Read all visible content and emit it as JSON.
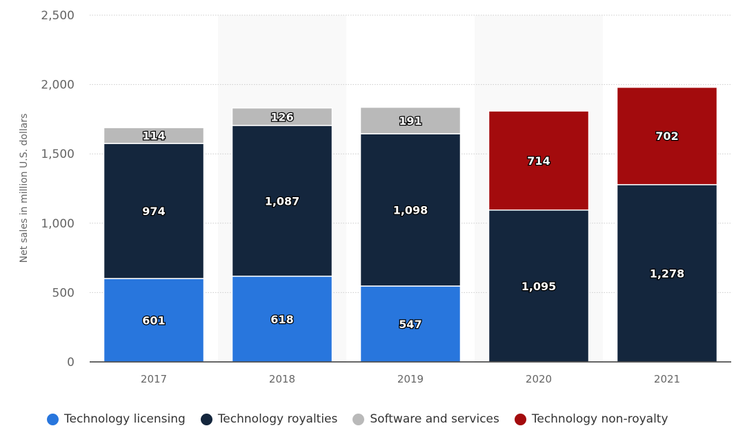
{
  "chart_data": {
    "type": "bar",
    "stacked": true,
    "title": "",
    "xlabel": "",
    "ylabel": "Net sales in million U.S. dollars",
    "ylim": [
      0,
      2500
    ],
    "yticks": [
      0,
      500,
      1000,
      1500,
      2000,
      2500
    ],
    "ytick_labels": [
      "0",
      "500",
      "1,000",
      "1,500",
      "2,000",
      "2,500"
    ],
    "grid": true,
    "legend_position": "bottom",
    "categories": [
      "2017",
      "2018",
      "2019",
      "2020",
      "2021"
    ],
    "series": [
      {
        "name": "Technology licensing",
        "color": "#2876dd",
        "values": [
          601,
          618,
          547,
          null,
          null
        ],
        "labels": [
          "601",
          "618",
          "547",
          "",
          ""
        ]
      },
      {
        "name": "Technology royalties",
        "color": "#14263d",
        "values": [
          974,
          1087,
          1098,
          1095,
          1278
        ],
        "labels": [
          "974",
          "1,087",
          "1,098",
          "1,095",
          "1,278"
        ]
      },
      {
        "name": "Software and services",
        "color": "#b9b9b9",
        "values": [
          114,
          126,
          191,
          null,
          null
        ],
        "labels": [
          "114",
          "126",
          "191",
          "",
          ""
        ]
      },
      {
        "name": "Technology non-royalty",
        "color": "#a30b0d",
        "values": [
          null,
          null,
          null,
          714,
          702
        ],
        "labels": [
          "",
          "",
          "",
          "714",
          "702"
        ]
      }
    ]
  }
}
